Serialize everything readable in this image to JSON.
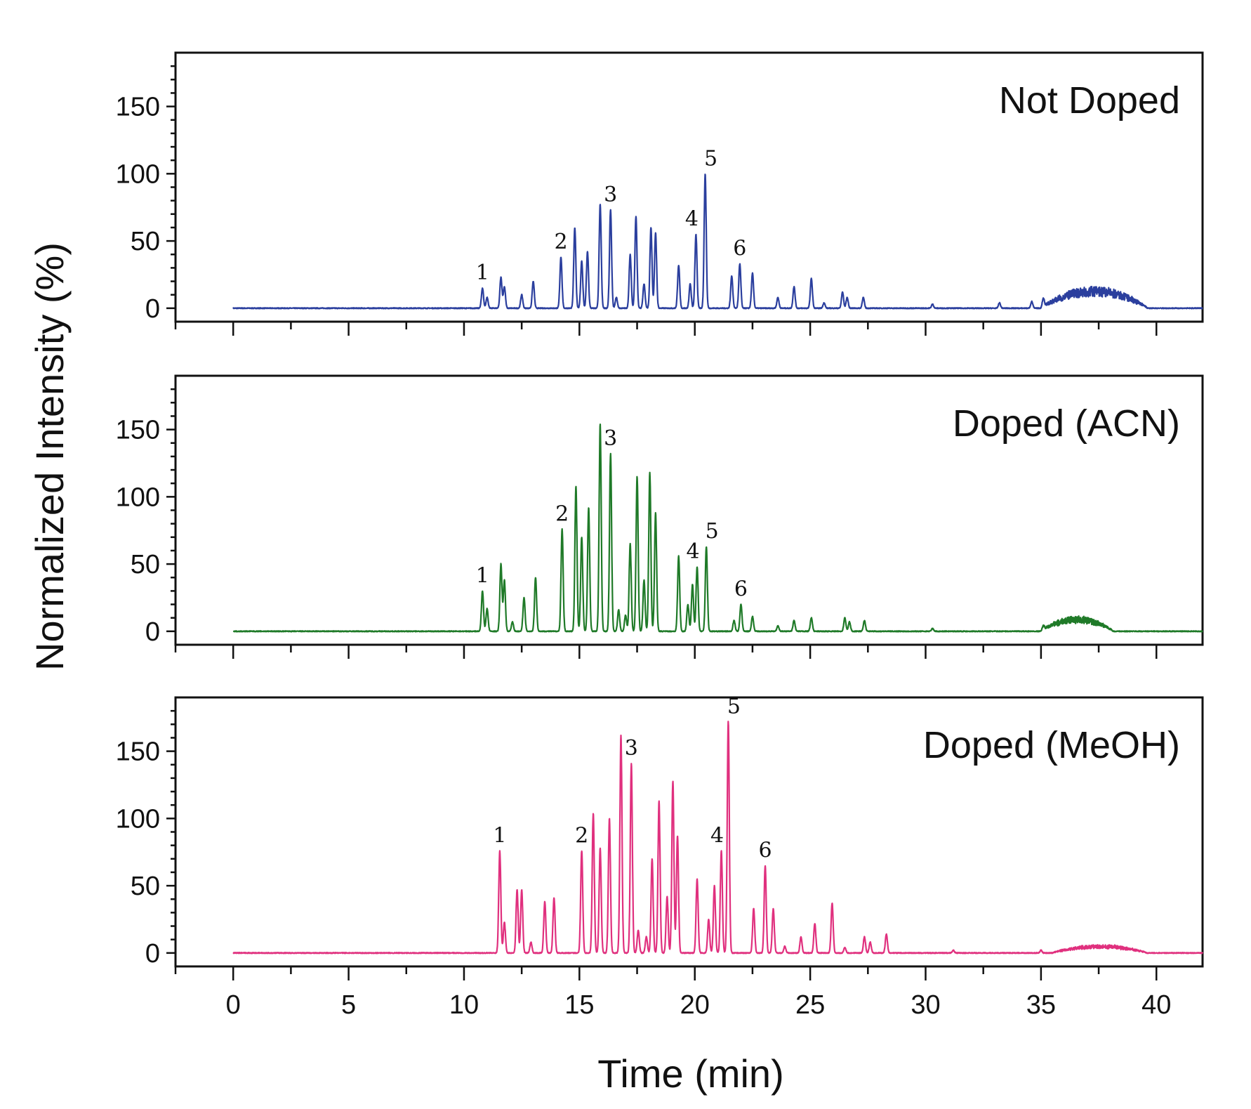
{
  "chart_data": {
    "type": "line",
    "ylabel": "Normalized Intensity (%)",
    "xlabel": "Time (min)",
    "xlim": [
      -2.5,
      42
    ],
    "ylim": [
      -10,
      190
    ],
    "x_ticks": [
      0,
      5,
      10,
      15,
      20,
      25,
      30,
      35,
      40
    ],
    "y_ticks": [
      0,
      50,
      100,
      150
    ],
    "grid": false,
    "panels": [
      {
        "title": "Not Doped",
        "color": "#2b3f9e",
        "hump": {
          "start": 35,
          "end": 40.3,
          "height": 13
        },
        "peaks": [
          [
            10.8,
            15
          ],
          [
            11.0,
            8
          ],
          [
            11.6,
            23
          ],
          [
            11.75,
            16
          ],
          [
            12.5,
            10
          ],
          [
            13.0,
            20
          ],
          [
            14.2,
            38
          ],
          [
            14.8,
            60
          ],
          [
            15.1,
            35
          ],
          [
            15.35,
            42
          ],
          [
            15.9,
            77
          ],
          [
            16.35,
            73
          ],
          [
            16.6,
            8
          ],
          [
            17.2,
            40
          ],
          [
            17.45,
            68
          ],
          [
            17.8,
            18
          ],
          [
            18.1,
            60
          ],
          [
            18.3,
            56
          ],
          [
            19.3,
            32
          ],
          [
            19.8,
            18
          ],
          [
            20.05,
            55
          ],
          [
            20.45,
            100
          ],
          [
            21.6,
            24
          ],
          [
            21.95,
            33
          ],
          [
            22.5,
            26
          ],
          [
            23.6,
            8
          ],
          [
            24.3,
            16
          ],
          [
            25.05,
            22
          ],
          [
            25.6,
            4
          ],
          [
            26.4,
            12
          ],
          [
            26.6,
            8
          ],
          [
            27.3,
            8
          ],
          [
            30.3,
            3
          ],
          [
            33.2,
            4
          ],
          [
            34.6,
            5
          ],
          [
            35.1,
            6
          ]
        ],
        "peak_labels": [
          {
            "text": "1",
            "x": 10.8,
            "y": 15
          },
          {
            "text": "2",
            "x": 14.2,
            "y": 38
          },
          {
            "text": "3",
            "x": 16.35,
            "y": 73
          },
          {
            "text": "4",
            "x": 20.05,
            "y": 55
          },
          {
            "text": "5",
            "x": 20.45,
            "y": 100
          },
          {
            "text": "6",
            "x": 21.95,
            "y": 33
          }
        ]
      },
      {
        "title": "Doped (ACN)",
        "color": "#1f7a28",
        "hump": {
          "start": 35,
          "end": 38.6,
          "height": 9
        },
        "peaks": [
          [
            10.8,
            30
          ],
          [
            11.0,
            17
          ],
          [
            11.6,
            50
          ],
          [
            11.75,
            38
          ],
          [
            12.1,
            7
          ],
          [
            12.6,
            25
          ],
          [
            13.1,
            40
          ],
          [
            14.25,
            76
          ],
          [
            14.85,
            108
          ],
          [
            15.1,
            70
          ],
          [
            15.4,
            92
          ],
          [
            15.9,
            154
          ],
          [
            16.35,
            132
          ],
          [
            16.7,
            16
          ],
          [
            17.0,
            12
          ],
          [
            17.2,
            65
          ],
          [
            17.5,
            115
          ],
          [
            17.8,
            38
          ],
          [
            18.05,
            118
          ],
          [
            18.3,
            88
          ],
          [
            19.3,
            56
          ],
          [
            19.7,
            20
          ],
          [
            19.9,
            35
          ],
          [
            20.1,
            48
          ],
          [
            20.5,
            63
          ],
          [
            21.7,
            8
          ],
          [
            22.0,
            20
          ],
          [
            22.5,
            11
          ],
          [
            23.6,
            4
          ],
          [
            24.3,
            8
          ],
          [
            25.05,
            10
          ],
          [
            26.5,
            10
          ],
          [
            26.7,
            7
          ],
          [
            27.35,
            8
          ],
          [
            30.3,
            2
          ],
          [
            35.1,
            3
          ]
        ],
        "peak_labels": [
          {
            "text": "1",
            "x": 10.8,
            "y": 30
          },
          {
            "text": "2",
            "x": 14.25,
            "y": 76
          },
          {
            "text": "3",
            "x": 16.35,
            "y": 132
          },
          {
            "text": "4",
            "x": 20.1,
            "y": 48
          },
          {
            "text": "5",
            "x": 20.5,
            "y": 63
          },
          {
            "text": "6",
            "x": 22.0,
            "y": 20
          }
        ]
      },
      {
        "title": "Doped (MeOH)",
        "color": "#e0307e",
        "hump": {
          "start": 35.5,
          "end": 40.2,
          "height": 5
        },
        "peaks": [
          [
            11.55,
            76
          ],
          [
            11.75,
            23
          ],
          [
            12.3,
            47
          ],
          [
            12.5,
            47
          ],
          [
            12.9,
            8
          ],
          [
            13.5,
            38
          ],
          [
            13.9,
            41
          ],
          [
            15.1,
            76
          ],
          [
            15.6,
            104
          ],
          [
            15.9,
            78
          ],
          [
            16.3,
            100
          ],
          [
            16.8,
            162
          ],
          [
            17.25,
            141
          ],
          [
            17.55,
            17
          ],
          [
            17.9,
            12
          ],
          [
            18.15,
            70
          ],
          [
            18.45,
            113
          ],
          [
            18.8,
            42
          ],
          [
            19.05,
            128
          ],
          [
            19.25,
            87
          ],
          [
            20.1,
            55
          ],
          [
            20.6,
            25
          ],
          [
            20.85,
            50
          ],
          [
            21.15,
            76
          ],
          [
            21.45,
            172
          ],
          [
            22.55,
            33
          ],
          [
            23.05,
            65
          ],
          [
            23.4,
            33
          ],
          [
            23.9,
            5
          ],
          [
            24.6,
            12
          ],
          [
            25.2,
            22
          ],
          [
            25.95,
            37
          ],
          [
            26.5,
            4
          ],
          [
            27.35,
            12
          ],
          [
            27.6,
            8
          ],
          [
            28.3,
            14
          ],
          [
            31.2,
            2
          ],
          [
            35.0,
            2
          ]
        ],
        "peak_labels": [
          {
            "text": "1",
            "x": 11.55,
            "y": 76
          },
          {
            "text": "2",
            "x": 15.1,
            "y": 76
          },
          {
            "text": "3",
            "x": 17.25,
            "y": 141
          },
          {
            "text": "4",
            "x": 21.15,
            "y": 76
          },
          {
            "text": "5",
            "x": 21.45,
            "y": 172
          },
          {
            "text": "6",
            "x": 23.05,
            "y": 65
          }
        ]
      }
    ]
  }
}
